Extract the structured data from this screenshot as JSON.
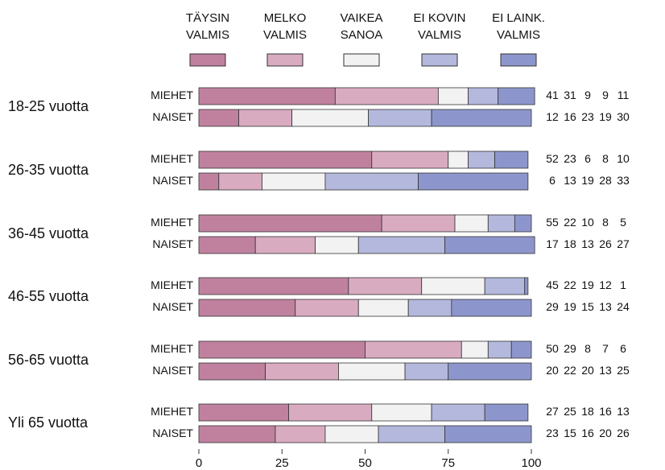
{
  "chart_data": {
    "type": "stacked-bar-horizontal",
    "series": [
      {
        "name": "TÄYSIN VALMIS",
        "color": "#c0819f"
      },
      {
        "name": "MELKO VALMIS",
        "color": "#d9abc1"
      },
      {
        "name": "VAIKEA SANOA",
        "color": "#f2f2f2"
      },
      {
        "name": "EI KOVIN VALMIS",
        "color": "#b3b8dc"
      },
      {
        "name": "EI LAINK. VALMIS",
        "color": "#8d96cc"
      }
    ],
    "groups": [
      {
        "name": "18-25 vuotta",
        "rows": [
          {
            "name": "MIEHET",
            "values": [
              41,
              31,
              9,
              9,
              11
            ]
          },
          {
            "name": "NAISET",
            "values": [
              12,
              16,
              23,
              19,
              30
            ]
          }
        ]
      },
      {
        "name": "26-35 vuotta",
        "rows": [
          {
            "name": "MIEHET",
            "values": [
              52,
              23,
              6,
              8,
              10
            ]
          },
          {
            "name": "NAISET",
            "values": [
              6,
              13,
              19,
              28,
              33
            ]
          }
        ]
      },
      {
        "name": "36-45 vuotta",
        "rows": [
          {
            "name": "MIEHET",
            "values": [
              55,
              22,
              10,
              8,
              5
            ]
          },
          {
            "name": "NAISET",
            "values": [
              17,
              18,
              13,
              26,
              27
            ]
          }
        ]
      },
      {
        "name": "46-55 vuotta",
        "rows": [
          {
            "name": "MIEHET",
            "values": [
              45,
              22,
              19,
              12,
              1
            ]
          },
          {
            "name": "NAISET",
            "values": [
              29,
              19,
              15,
              13,
              24
            ]
          }
        ]
      },
      {
        "name": "56-65 vuotta",
        "rows": [
          {
            "name": "MIEHET",
            "values": [
              50,
              29,
              8,
              7,
              6
            ]
          },
          {
            "name": "NAISET",
            "values": [
              20,
              22,
              20,
              13,
              25
            ]
          }
        ]
      },
      {
        "name": "Yli 65 vuotta",
        "rows": [
          {
            "name": "MIEHET",
            "values": [
              27,
              25,
              18,
              16,
              13
            ]
          },
          {
            "name": "NAISET",
            "values": [
              23,
              15,
              16,
              20,
              26
            ]
          }
        ]
      }
    ],
    "xlim": [
      0,
      100
    ],
    "xticks": [
      0,
      25,
      50,
      75,
      100
    ]
  }
}
